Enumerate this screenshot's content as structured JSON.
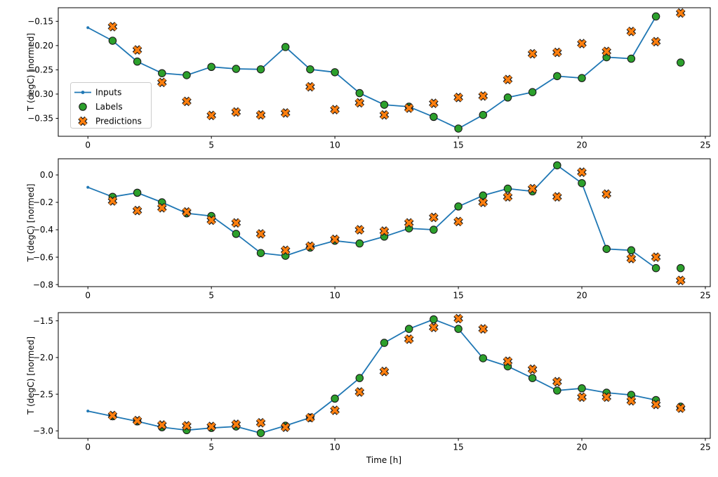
{
  "figure": {
    "xlabel": "Time [h]",
    "ylabel": "T (degC) [normed]",
    "background": "#ffffff",
    "legend": {
      "position": "upper-left-of-first-subplot",
      "items": [
        {
          "label": "Inputs",
          "marker": "line-with-dot",
          "color": "#1f77b4"
        },
        {
          "label": "Labels",
          "marker": "circle",
          "color": "#2ca02c"
        },
        {
          "label": "Predictions",
          "marker": "X",
          "color": "#ff7f0e"
        }
      ]
    }
  },
  "colors": {
    "inputs_line": "#1f77b4",
    "labels_fill": "#2ca02c",
    "predictions_fill": "#ff7f0e",
    "marker_edge": "#1a1a1a",
    "spine": "#000000"
  },
  "chart_data": [
    {
      "type": "line",
      "panel": "top",
      "ylabel": "T (degC) [normed]",
      "xlim": [
        -1.2,
        25.2
      ],
      "ylim": [
        -0.387,
        -0.122
      ],
      "xticks": [
        0,
        5,
        10,
        15,
        20,
        25
      ],
      "xtick_labels": [
        "0",
        "5",
        "10",
        "15",
        "20",
        "25"
      ],
      "yticks": [
        -0.15,
        -0.2,
        -0.25,
        -0.3,
        -0.35
      ],
      "ytick_labels": [
        "−0.15",
        "−0.20",
        "−0.25",
        "−0.30",
        "−0.35"
      ],
      "grid": false,
      "legend_visible": true,
      "series": [
        {
          "name": "Inputs",
          "kind": "line",
          "marker": "dot",
          "color": "#1f77b4",
          "x": [
            0,
            1,
            2,
            3,
            4,
            5,
            6,
            7,
            8,
            9,
            10,
            11,
            12,
            13,
            14,
            15,
            16,
            17,
            18,
            19,
            20,
            21,
            22,
            23
          ],
          "y": [
            -0.163,
            -0.19,
            -0.233,
            -0.257,
            -0.261,
            -0.244,
            -0.248,
            -0.249,
            -0.203,
            -0.249,
            -0.255,
            -0.298,
            -0.322,
            -0.326,
            -0.347,
            -0.371,
            -0.343,
            -0.307,
            -0.296,
            -0.263,
            -0.267,
            -0.224,
            -0.227,
            -0.14
          ]
        },
        {
          "name": "Labels",
          "kind": "scatter",
          "marker": "circle",
          "color": "#2ca02c",
          "x": [
            1,
            2,
            3,
            4,
            5,
            6,
            7,
            8,
            9,
            10,
            11,
            12,
            13,
            14,
            15,
            16,
            17,
            18,
            19,
            20,
            21,
            22,
            23,
            24
          ],
          "y": [
            -0.19,
            -0.233,
            -0.257,
            -0.261,
            -0.244,
            -0.248,
            -0.249,
            -0.203,
            -0.249,
            -0.255,
            -0.298,
            -0.322,
            -0.326,
            -0.347,
            -0.371,
            -0.343,
            -0.307,
            -0.296,
            -0.263,
            -0.267,
            -0.224,
            -0.227,
            -0.14,
            -0.235
          ]
        },
        {
          "name": "Predictions",
          "kind": "scatter",
          "marker": "X",
          "color": "#ff7f0e",
          "x": [
            1,
            2,
            3,
            4,
            5,
            6,
            7,
            8,
            9,
            10,
            11,
            12,
            13,
            14,
            15,
            16,
            17,
            18,
            19,
            20,
            21,
            22,
            23,
            24
          ],
          "y": [
            -0.161,
            -0.209,
            -0.276,
            -0.315,
            -0.344,
            -0.337,
            -0.343,
            -0.339,
            -0.285,
            -0.332,
            -0.318,
            -0.343,
            -0.329,
            -0.319,
            -0.307,
            -0.304,
            -0.27,
            -0.217,
            -0.214,
            -0.196,
            -0.212,
            -0.171,
            -0.192,
            -0.133
          ]
        }
      ]
    },
    {
      "type": "line",
      "panel": "middle",
      "ylabel": "T (degC) [normed]",
      "xlim": [
        -1.2,
        25.2
      ],
      "ylim": [
        -0.815,
        0.118
      ],
      "xticks": [
        0,
        5,
        10,
        15,
        20,
        25
      ],
      "xtick_labels": [
        "0",
        "5",
        "10",
        "15",
        "20",
        "25"
      ],
      "yticks": [
        0.0,
        -0.2,
        -0.4,
        -0.6,
        -0.8
      ],
      "ytick_labels": [
        "0.0",
        "−0.2",
        "−0.4",
        "−0.6",
        "−0.8"
      ],
      "grid": false,
      "legend_visible": false,
      "series": [
        {
          "name": "Inputs",
          "kind": "line",
          "marker": "dot",
          "color": "#1f77b4",
          "x": [
            0,
            1,
            2,
            3,
            4,
            5,
            6,
            7,
            8,
            9,
            10,
            11,
            12,
            13,
            14,
            15,
            16,
            17,
            18,
            19,
            20,
            21,
            22,
            23
          ],
          "y": [
            -0.09,
            -0.16,
            -0.13,
            -0.2,
            -0.28,
            -0.3,
            -0.43,
            -0.57,
            -0.59,
            -0.53,
            -0.48,
            -0.5,
            -0.45,
            -0.39,
            -0.4,
            -0.23,
            -0.15,
            -0.1,
            -0.12,
            0.07,
            -0.06,
            -0.54,
            -0.55,
            -0.68
          ]
        },
        {
          "name": "Labels",
          "kind": "scatter",
          "marker": "circle",
          "color": "#2ca02c",
          "x": [
            1,
            2,
            3,
            4,
            5,
            6,
            7,
            8,
            9,
            10,
            11,
            12,
            13,
            14,
            15,
            16,
            17,
            18,
            19,
            20,
            21,
            22,
            23,
            24
          ],
          "y": [
            -0.16,
            -0.13,
            -0.2,
            -0.28,
            -0.3,
            -0.43,
            -0.57,
            -0.59,
            -0.53,
            -0.48,
            -0.5,
            -0.45,
            -0.39,
            -0.4,
            -0.23,
            -0.15,
            -0.1,
            -0.12,
            0.07,
            -0.06,
            -0.54,
            -0.55,
            -0.68,
            -0.68
          ]
        },
        {
          "name": "Predictions",
          "kind": "scatter",
          "marker": "X",
          "color": "#ff7f0e",
          "x": [
            1,
            2,
            3,
            4,
            5,
            6,
            7,
            8,
            9,
            10,
            11,
            12,
            13,
            14,
            15,
            16,
            17,
            18,
            19,
            20,
            21,
            22,
            23,
            24
          ],
          "y": [
            -0.19,
            -0.26,
            -0.24,
            -0.27,
            -0.33,
            -0.35,
            -0.43,
            -0.55,
            -0.52,
            -0.47,
            -0.4,
            -0.41,
            -0.35,
            -0.31,
            -0.34,
            -0.2,
            -0.16,
            -0.1,
            -0.16,
            0.02,
            -0.14,
            -0.61,
            -0.6,
            -0.77
          ]
        }
      ]
    },
    {
      "type": "line",
      "panel": "bottom",
      "ylabel": "T (degC) [normed]",
      "xlabel": "Time [h]",
      "xlim": [
        -1.2,
        25.2
      ],
      "ylim": [
        -3.102,
        -1.388
      ],
      "xticks": [
        0,
        5,
        10,
        15,
        20,
        25
      ],
      "xtick_labels": [
        "0",
        "5",
        "10",
        "15",
        "20",
        "25"
      ],
      "yticks": [
        -1.5,
        -2.0,
        -2.5,
        -3.0
      ],
      "ytick_labels": [
        "−1.5",
        "−2.0",
        "−2.5",
        "−3.0"
      ],
      "grid": false,
      "legend_visible": false,
      "series": [
        {
          "name": "Inputs",
          "kind": "line",
          "marker": "dot",
          "color": "#1f77b4",
          "x": [
            0,
            1,
            2,
            3,
            4,
            5,
            6,
            7,
            8,
            9,
            10,
            11,
            12,
            13,
            14,
            15,
            16,
            17,
            18,
            19,
            20,
            21,
            22,
            23
          ],
          "y": [
            -2.73,
            -2.8,
            -2.87,
            -2.95,
            -2.99,
            -2.96,
            -2.94,
            -3.03,
            -2.93,
            -2.82,
            -2.56,
            -2.28,
            -1.8,
            -1.61,
            -1.48,
            -1.61,
            -2.01,
            -2.12,
            -2.28,
            -2.45,
            -2.42,
            -2.48,
            -2.51,
            -2.58
          ]
        },
        {
          "name": "Labels",
          "kind": "scatter",
          "marker": "circle",
          "color": "#2ca02c",
          "x": [
            1,
            2,
            3,
            4,
            5,
            6,
            7,
            8,
            9,
            10,
            11,
            12,
            13,
            14,
            15,
            16,
            17,
            18,
            19,
            20,
            21,
            22,
            23,
            24
          ],
          "y": [
            -2.8,
            -2.87,
            -2.95,
            -2.99,
            -2.96,
            -2.94,
            -3.03,
            -2.93,
            -2.82,
            -2.56,
            -2.28,
            -1.8,
            -1.61,
            -1.48,
            -1.61,
            -2.01,
            -2.12,
            -2.28,
            -2.45,
            -2.42,
            -2.48,
            -2.51,
            -2.58,
            -2.67
          ]
        },
        {
          "name": "Predictions",
          "kind": "scatter",
          "marker": "X",
          "color": "#ff7f0e",
          "x": [
            1,
            2,
            3,
            4,
            5,
            6,
            7,
            8,
            9,
            10,
            11,
            12,
            13,
            14,
            15,
            16,
            17,
            18,
            19,
            20,
            21,
            22,
            23,
            24
          ],
          "y": [
            -2.79,
            -2.86,
            -2.92,
            -2.93,
            -2.94,
            -2.91,
            -2.89,
            -2.95,
            -2.82,
            -2.72,
            -2.47,
            -2.19,
            -1.75,
            -1.59,
            -1.47,
            -1.61,
            -2.05,
            -2.16,
            -2.33,
            -2.54,
            -2.54,
            -2.59,
            -2.64,
            -2.69
          ]
        }
      ]
    }
  ]
}
